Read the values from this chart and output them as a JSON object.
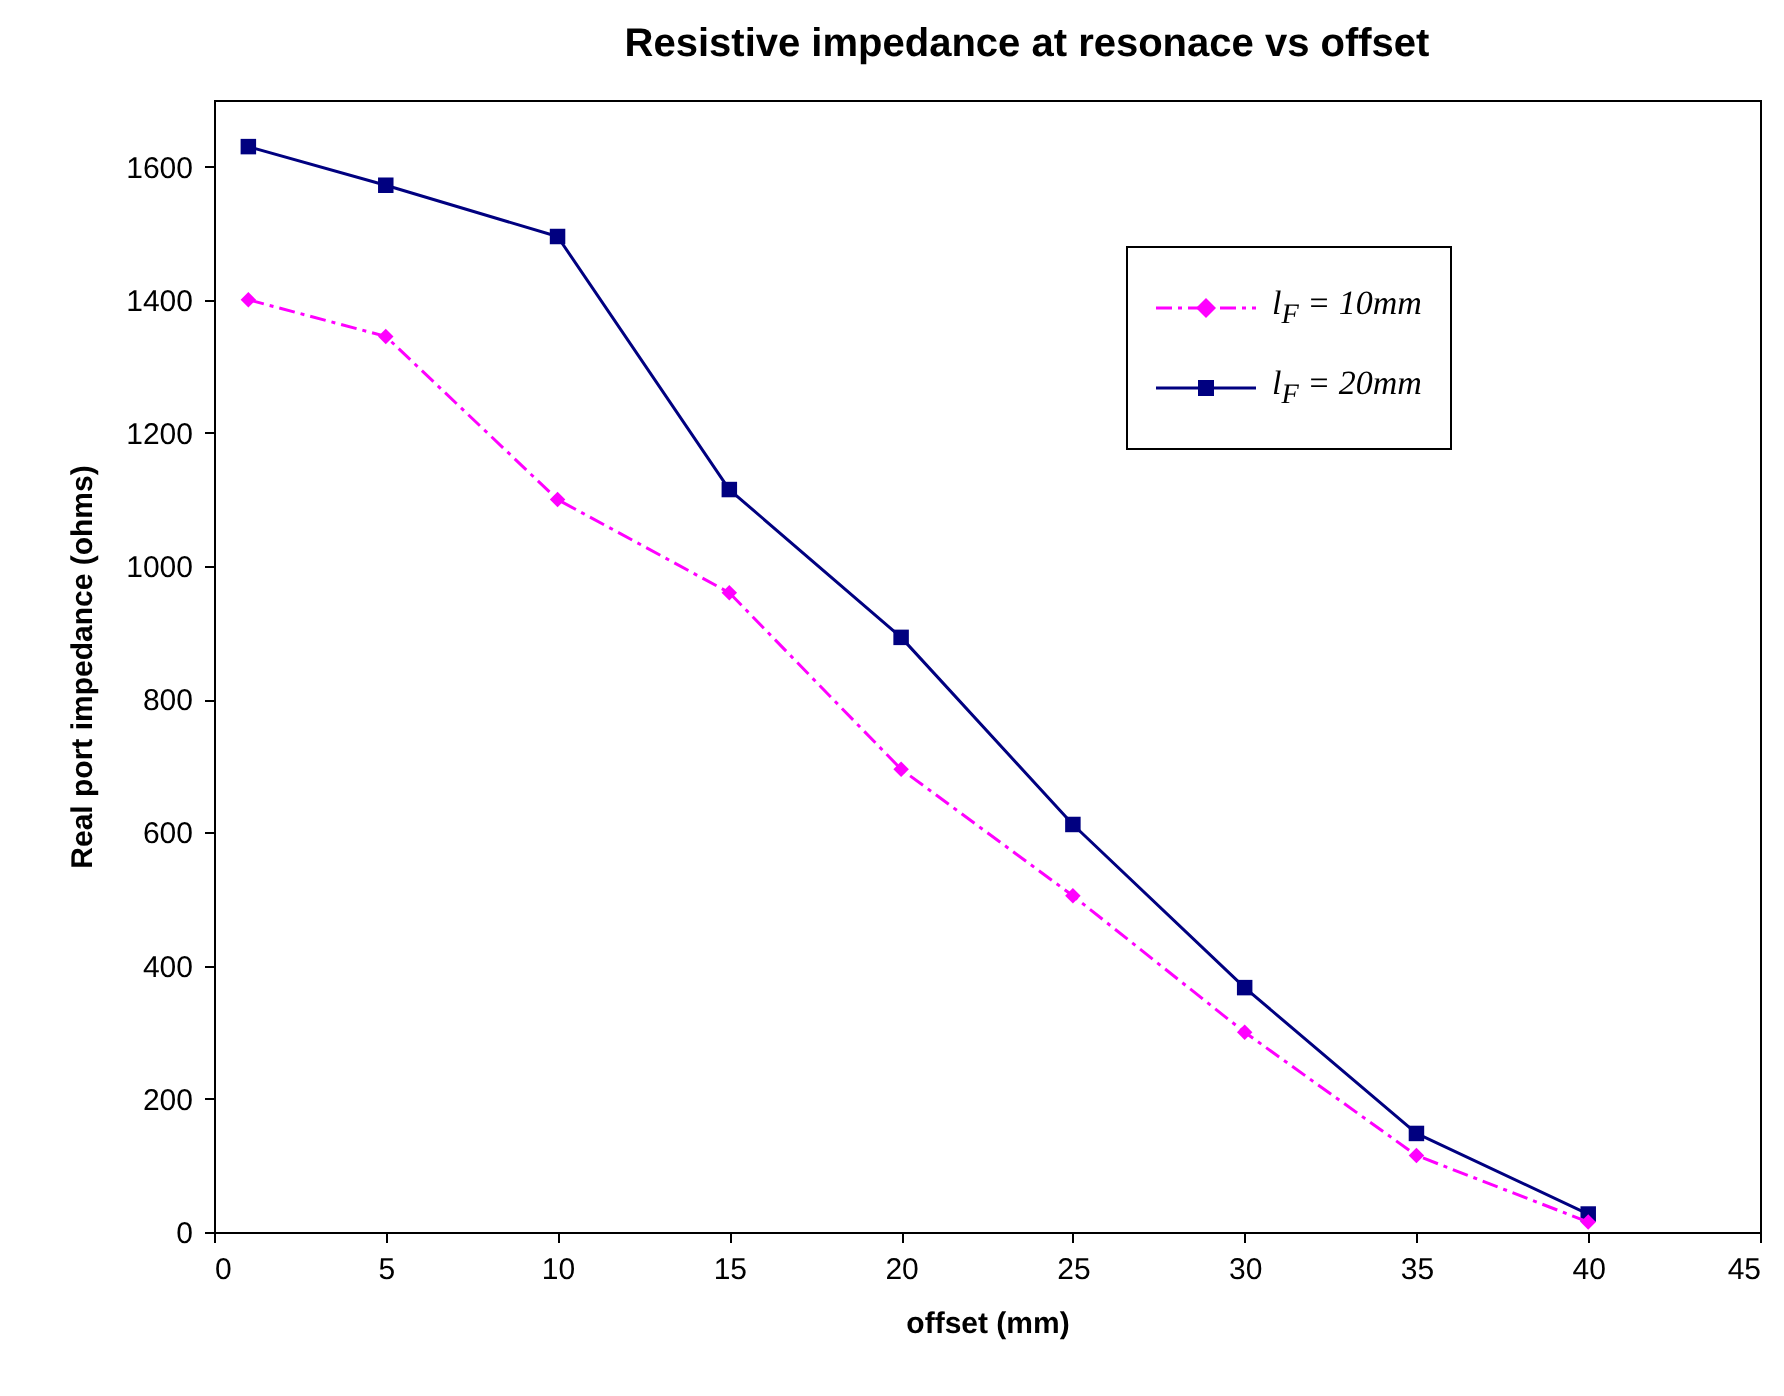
{
  "chart_data": {
    "type": "line",
    "title": "Resistive impedance at resonace vs offset",
    "xlabel": "offset (mm)",
    "ylabel": "Real port impedance (ohms)",
    "x": [
      1,
      5,
      10,
      15,
      20,
      25,
      30,
      35,
      40
    ],
    "series": [
      {
        "name": "l$_{F}$ = 10mm",
        "color": "#ff00ff",
        "marker": "diamond",
        "line_style": "dashed",
        "values": [
          1400,
          1345,
          1100,
          960,
          695,
          505,
          300,
          115,
          15
        ]
      },
      {
        "name": "l$_{F}$ = 20mm",
        "color": "#000080",
        "marker": "square",
        "line_style": "solid",
        "values": [
          1630,
          1572,
          1495,
          1115,
          893,
          612,
          367,
          148,
          27
        ]
      }
    ],
    "xlim": [
      0,
      45
    ],
    "xticks": [
      0,
      5,
      10,
      15,
      20,
      25,
      30,
      35,
      40,
      45
    ],
    "ylim": [
      0,
      1700
    ],
    "yticks": [
      0,
      200,
      400,
      600,
      800,
      1000,
      1200,
      1400,
      1600
    ],
    "grid": false,
    "legend": "top right"
  }
}
